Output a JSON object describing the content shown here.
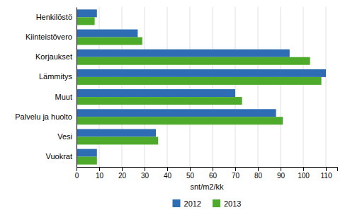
{
  "chart_data": {
    "type": "bar",
    "orientation": "horizontal",
    "categories": [
      "Vuokrat",
      "Vesi",
      "Palvelu ja huolto",
      "Muut",
      "Lämmitys",
      "Korjaukset",
      "Kiinteistövero",
      "Henkilöstö"
    ],
    "series": [
      {
        "name": "2012",
        "color": "#2E6DB4",
        "values": [
          9,
          35,
          88,
          70,
          110,
          94,
          27,
          9
        ]
      },
      {
        "name": "2013",
        "color": "#4EAA2A",
        "values": [
          9,
          36,
          91,
          73,
          108,
          103,
          29,
          8
        ]
      }
    ],
    "xlabel": "snt/m2/kk",
    "xlim": [
      0,
      115
    ],
    "xticks": [
      0,
      10,
      20,
      30,
      40,
      50,
      60,
      70,
      80,
      90,
      100,
      110
    ],
    "grid": true,
    "legend": "bottom"
  }
}
